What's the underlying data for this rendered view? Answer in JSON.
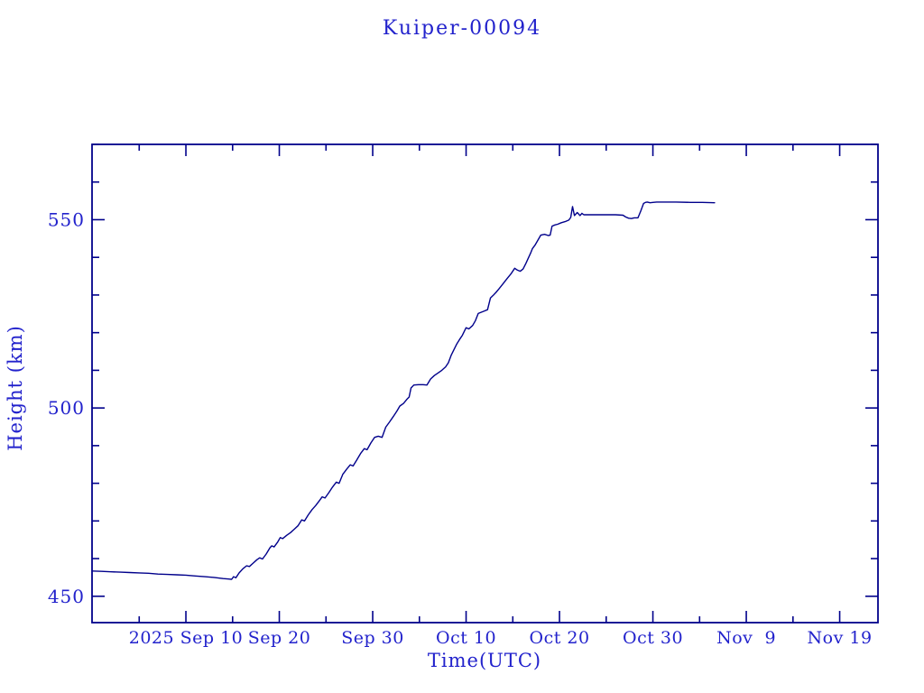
{
  "chart_data": {
    "type": "line",
    "title": "Kuiper-00094",
    "xlabel": "Time(UTC)",
    "ylabel": "Height (km)",
    "x_axis": {
      "unit": "days since 2025 Sep 10",
      "range_days": [
        -10.05,
        74.1
      ],
      "major_ticks": [
        {
          "day": 0,
          "label": "2025 Sep 10"
        },
        {
          "day": 10,
          "label": "Sep 20"
        },
        {
          "day": 20,
          "label": "Sep 30"
        },
        {
          "day": 30,
          "label": "Oct 10"
        },
        {
          "day": 40,
          "label": "Oct 20"
        },
        {
          "day": 50,
          "label": "Oct 30"
        },
        {
          "day": 60,
          "label": "Nov  9"
        },
        {
          "day": 70,
          "label": "Nov 19"
        }
      ],
      "minor_ticks_days": [
        -5,
        5,
        15,
        25,
        35,
        45,
        55,
        65
      ]
    },
    "y_axis": {
      "range": [
        443,
        570
      ],
      "major_ticks": [
        {
          "value": 450,
          "label": "450"
        },
        {
          "value": 500,
          "label": "500"
        },
        {
          "value": 550,
          "label": "550"
        }
      ],
      "minor_ticks": [
        460,
        470,
        480,
        490,
        510,
        520,
        530,
        540,
        560,
        570
      ]
    },
    "grid": false,
    "legend": null,
    "colors": {
      "line": "#00008b",
      "axis": "#00008b",
      "text": "#2222cc"
    },
    "series": [
      {
        "name": "height",
        "points": [
          [
            -10.05,
            456.7
          ],
          [
            -9,
            456.6
          ],
          [
            -8,
            456.5
          ],
          [
            -7,
            456.4
          ],
          [
            -6,
            456.3
          ],
          [
            -5,
            456.2
          ],
          [
            -4,
            456.1
          ],
          [
            -3,
            455.9
          ],
          [
            -2,
            455.8
          ],
          [
            -1,
            455.7
          ],
          [
            0,
            455.6
          ],
          [
            1,
            455.4
          ],
          [
            2,
            455.2
          ],
          [
            3,
            455.0
          ],
          [
            4,
            454.7
          ],
          [
            4.9,
            454.5
          ],
          [
            5.1,
            455.2
          ],
          [
            5.35,
            454.9
          ],
          [
            5.7,
            456.2
          ],
          [
            6.1,
            457.3
          ],
          [
            6.5,
            458.1
          ],
          [
            6.8,
            457.9
          ],
          [
            7.2,
            458.8
          ],
          [
            7.6,
            459.7
          ],
          [
            7.9,
            460.2
          ],
          [
            8.2,
            459.9
          ],
          [
            8.6,
            461.2
          ],
          [
            9.0,
            462.9
          ],
          [
            9.2,
            463.4
          ],
          [
            9.45,
            463.1
          ],
          [
            9.8,
            464.3
          ],
          [
            10.1,
            465.6
          ],
          [
            10.35,
            465.3
          ],
          [
            10.8,
            466.2
          ],
          [
            11.2,
            466.9
          ],
          [
            11.6,
            467.8
          ],
          [
            12.0,
            468.7
          ],
          [
            12.4,
            470.3
          ],
          [
            12.7,
            470.0
          ],
          [
            13.1,
            471.6
          ],
          [
            13.5,
            473.0
          ],
          [
            13.9,
            474.1
          ],
          [
            14.3,
            475.4
          ],
          [
            14.6,
            476.4
          ],
          [
            14.9,
            476.1
          ],
          [
            15.3,
            477.5
          ],
          [
            15.7,
            479.0
          ],
          [
            16.1,
            480.3
          ],
          [
            16.4,
            480.0
          ],
          [
            16.8,
            482.4
          ],
          [
            17.2,
            483.7
          ],
          [
            17.6,
            484.9
          ],
          [
            17.9,
            484.6
          ],
          [
            18.3,
            486.2
          ],
          [
            18.7,
            487.9
          ],
          [
            19.1,
            489.2
          ],
          [
            19.4,
            488.9
          ],
          [
            19.8,
            490.7
          ],
          [
            20.2,
            492.2
          ],
          [
            20.6,
            492.5
          ],
          [
            21.0,
            492.2
          ],
          [
            21.4,
            494.9
          ],
          [
            21.8,
            496.3
          ],
          [
            22.2,
            497.7
          ],
          [
            22.6,
            499.2
          ],
          [
            22.9,
            500.5
          ],
          [
            23.3,
            501.2
          ],
          [
            23.7,
            502.4
          ],
          [
            23.9,
            502.9
          ],
          [
            24.1,
            505.3
          ],
          [
            24.4,
            506.1
          ],
          [
            24.9,
            506.2
          ],
          [
            25.4,
            506.2
          ],
          [
            25.8,
            506.1
          ],
          [
            26.2,
            507.7
          ],
          [
            26.6,
            508.6
          ],
          [
            27.0,
            509.3
          ],
          [
            27.4,
            510.0
          ],
          [
            27.8,
            510.9
          ],
          [
            28.1,
            512.0
          ],
          [
            28.4,
            514.0
          ],
          [
            28.7,
            515.5
          ],
          [
            29.0,
            517.0
          ],
          [
            29.3,
            518.2
          ],
          [
            29.6,
            519.3
          ],
          [
            30.0,
            521.3
          ],
          [
            30.3,
            521.0
          ],
          [
            30.7,
            521.9
          ],
          [
            31.0,
            523.2
          ],
          [
            31.3,
            525.1
          ],
          [
            31.6,
            525.4
          ],
          [
            32.0,
            525.8
          ],
          [
            32.3,
            526.1
          ],
          [
            32.6,
            529.2
          ],
          [
            32.9,
            529.9
          ],
          [
            33.2,
            530.7
          ],
          [
            33.5,
            531.6
          ],
          [
            33.9,
            532.8
          ],
          [
            34.4,
            534.4
          ],
          [
            34.8,
            535.6
          ],
          [
            35.2,
            537.1
          ],
          [
            35.5,
            536.6
          ],
          [
            35.8,
            536.3
          ],
          [
            36.1,
            536.9
          ],
          [
            36.4,
            538.4
          ],
          [
            36.6,
            539.5
          ],
          [
            36.9,
            541.1
          ],
          [
            37.1,
            542.3
          ],
          [
            37.4,
            543.3
          ],
          [
            37.7,
            544.6
          ],
          [
            38.0,
            545.9
          ],
          [
            38.4,
            546.1
          ],
          [
            38.8,
            545.8
          ],
          [
            39.0,
            545.9
          ],
          [
            39.2,
            548.3
          ],
          [
            39.5,
            548.6
          ],
          [
            39.8,
            548.8
          ],
          [
            40.2,
            549.2
          ],
          [
            40.6,
            549.5
          ],
          [
            41.0,
            549.9
          ],
          [
            41.2,
            550.6
          ],
          [
            41.4,
            553.5
          ],
          [
            41.6,
            551.1
          ],
          [
            41.9,
            551.9
          ],
          [
            42.2,
            551.1
          ],
          [
            42.4,
            551.7
          ],
          [
            42.6,
            551.3
          ],
          [
            43.2,
            551.3
          ],
          [
            44.0,
            551.3
          ],
          [
            45.0,
            551.3
          ],
          [
            46.0,
            551.3
          ],
          [
            46.8,
            551.2
          ],
          [
            47.1,
            550.7
          ],
          [
            47.4,
            550.4
          ],
          [
            47.7,
            550.3
          ],
          [
            48.0,
            550.5
          ],
          [
            48.4,
            550.5
          ],
          [
            48.7,
            552.3
          ],
          [
            49.0,
            554.3
          ],
          [
            49.2,
            554.6
          ],
          [
            49.4,
            554.7
          ],
          [
            49.7,
            554.5
          ],
          [
            50.0,
            554.6
          ],
          [
            50.4,
            554.7
          ],
          [
            51.0,
            554.7
          ],
          [
            52.5,
            554.7
          ],
          [
            54.0,
            554.6
          ],
          [
            55.3,
            554.6
          ],
          [
            56.6,
            554.5
          ]
        ]
      }
    ]
  }
}
